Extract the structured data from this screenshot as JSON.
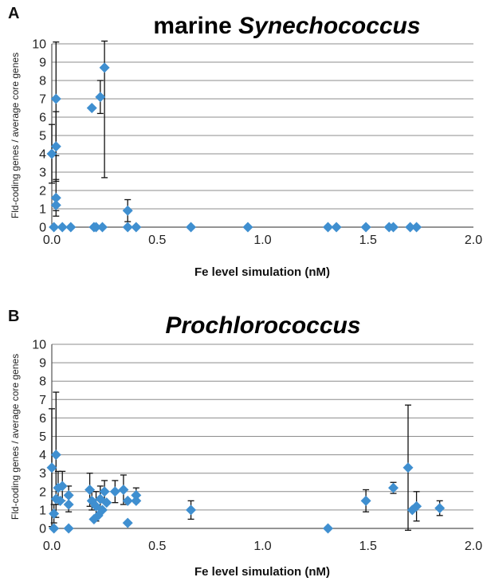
{
  "chart_data": [
    {
      "type": "scatter",
      "panel": "A",
      "title_plain": "marine",
      "title_italic": "Synechococcus",
      "xlabel": "Fe level simulation (nM)",
      "ylabel": "Fld-coding genes / average core genes",
      "xlim": [
        0,
        2.0
      ],
      "ylim": [
        0,
        10
      ],
      "xticks": [
        "0.0",
        "0.5",
        "1.0",
        "1.5",
        "2.0"
      ],
      "yticks": [
        "0",
        "1",
        "2",
        "3",
        "4",
        "5",
        "6",
        "7",
        "8",
        "9",
        "10"
      ],
      "grid": "horizontal",
      "marker_color": "#3f8fd0",
      "points": [
        {
          "x": 0.0,
          "y": 4.0,
          "err": 1.6
        },
        {
          "x": 0.01,
          "y": 0.0
        },
        {
          "x": 0.02,
          "y": 7.0,
          "err": 3.1
        },
        {
          "x": 0.02,
          "y": 4.4,
          "err": 1.9
        },
        {
          "x": 0.02,
          "y": 1.6,
          "err": 1.0
        },
        {
          "x": 0.02,
          "y": 1.2,
          "err": 0.3
        },
        {
          "x": 0.05,
          "y": 0.0
        },
        {
          "x": 0.09,
          "y": 0.0
        },
        {
          "x": 0.19,
          "y": 6.5
        },
        {
          "x": 0.2,
          "y": 0.0
        },
        {
          "x": 0.21,
          "y": 0.0
        },
        {
          "x": 0.23,
          "y": 7.1,
          "err": 0.9
        },
        {
          "x": 0.24,
          "y": 0.0
        },
        {
          "x": 0.25,
          "y": 8.7,
          "err": 6.0
        },
        {
          "x": 0.36,
          "y": 0.9,
          "err": 0.6
        },
        {
          "x": 0.36,
          "y": 0.0
        },
        {
          "x": 0.4,
          "y": 0.0
        },
        {
          "x": 0.66,
          "y": 0.0
        },
        {
          "x": 0.93,
          "y": 0.0
        },
        {
          "x": 1.31,
          "y": 0.0
        },
        {
          "x": 1.35,
          "y": 0.0
        },
        {
          "x": 1.49,
          "y": 0.0
        },
        {
          "x": 1.6,
          "y": 0.0
        },
        {
          "x": 1.62,
          "y": 0.0
        },
        {
          "x": 1.7,
          "y": 0.0
        },
        {
          "x": 1.73,
          "y": 0.0
        }
      ]
    },
    {
      "type": "scatter",
      "panel": "B",
      "title_plain": "",
      "title_italic": "Prochlorococcus",
      "xlabel": "Fe level simulation (nM)",
      "ylabel": "Fld-coding genes / average core genes",
      "xlim": [
        0,
        2.0
      ],
      "ylim": [
        0,
        10
      ],
      "xticks": [
        "0.0",
        "0.5",
        "1.0",
        "1.5",
        "2.0"
      ],
      "yticks": [
        "0",
        "1",
        "2",
        "3",
        "4",
        "5",
        "6",
        "7",
        "8",
        "9",
        "10"
      ],
      "grid": "horizontal",
      "marker_color": "#3f8fd0",
      "points": [
        {
          "x": 0.0,
          "y": 3.3,
          "err": 3.2
        },
        {
          "x": 0.01,
          "y": 0.8,
          "err": 0.5
        },
        {
          "x": 0.01,
          "y": 0.0
        },
        {
          "x": 0.02,
          "y": 4.0,
          "err": 3.4
        },
        {
          "x": 0.02,
          "y": 1.6
        },
        {
          "x": 0.03,
          "y": 2.2,
          "err": 0.9
        },
        {
          "x": 0.04,
          "y": 1.5
        },
        {
          "x": 0.05,
          "y": 2.3,
          "err": 0.8
        },
        {
          "x": 0.08,
          "y": 1.8,
          "err": 0.5
        },
        {
          "x": 0.08,
          "y": 1.3,
          "err": 0.4
        },
        {
          "x": 0.08,
          "y": 0.0
        },
        {
          "x": 0.18,
          "y": 2.1,
          "err": 0.9
        },
        {
          "x": 0.19,
          "y": 1.5,
          "err": 0.5
        },
        {
          "x": 0.2,
          "y": 0.5
        },
        {
          "x": 0.21,
          "y": 1.2,
          "err": 0.8
        },
        {
          "x": 0.22,
          "y": 0.7
        },
        {
          "x": 0.23,
          "y": 1.6,
          "err": 0.7
        },
        {
          "x": 0.24,
          "y": 1.0
        },
        {
          "x": 0.25,
          "y": 2.0,
          "err": 0.6
        },
        {
          "x": 0.26,
          "y": 1.4
        },
        {
          "x": 0.3,
          "y": 2.0,
          "err": 0.6
        },
        {
          "x": 0.34,
          "y": 2.1,
          "err": 0.8
        },
        {
          "x": 0.36,
          "y": 1.5
        },
        {
          "x": 0.36,
          "y": 0.3
        },
        {
          "x": 0.4,
          "y": 1.8,
          "err": 0.4
        },
        {
          "x": 0.4,
          "y": 1.5
        },
        {
          "x": 0.66,
          "y": 1.0,
          "err": 0.5
        },
        {
          "x": 1.31,
          "y": 0.0
        },
        {
          "x": 1.49,
          "y": 1.5,
          "err": 0.6
        },
        {
          "x": 1.62,
          "y": 2.2,
          "err": 0.3
        },
        {
          "x": 1.69,
          "y": 3.3,
          "err": 3.4
        },
        {
          "x": 1.71,
          "y": 1.0
        },
        {
          "x": 1.73,
          "y": 1.2,
          "err": 0.8
        },
        {
          "x": 1.84,
          "y": 1.1,
          "err": 0.4
        }
      ]
    }
  ]
}
